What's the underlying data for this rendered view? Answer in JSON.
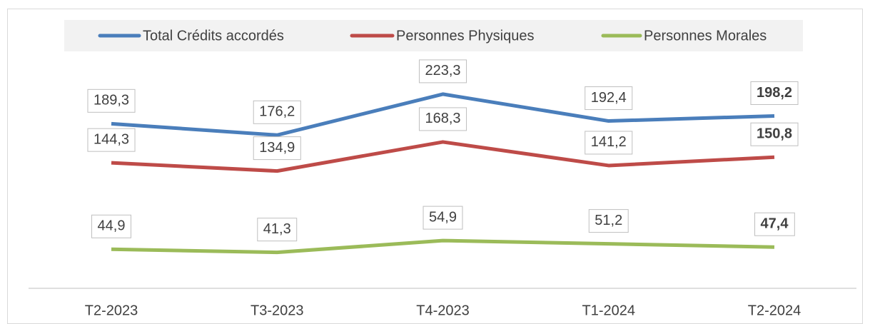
{
  "chart_data": {
    "type": "line",
    "categories": [
      "T2-2023",
      "T3-2023",
      "T4-2023",
      "T1-2024",
      "T2-2024"
    ],
    "series": [
      {
        "name": "Total Crédits accordés",
        "color": "#4a7ebb",
        "values": [
          189.3,
          176.2,
          223.3,
          192.4,
          198.2
        ],
        "value_labels": [
          "189,3",
          "176,2",
          "223,3",
          "192,4",
          "198,2"
        ]
      },
      {
        "name": "Personnes Physiques",
        "color": "#be4b48",
        "values": [
          144.3,
          134.9,
          168.3,
          141.2,
          150.8
        ],
        "value_labels": [
          "144,3",
          "134,9",
          "168,3",
          "141,2",
          "150,8"
        ]
      },
      {
        "name": "Personnes Morales",
        "color": "#9bbb59",
        "values": [
          44.9,
          41.3,
          54.9,
          51.2,
          47.4
        ],
        "value_labels": [
          "44,9",
          "41,3",
          "54,9",
          "51,2",
          "47,4"
        ]
      }
    ],
    "ylim": [
      0,
      270
    ],
    "legend": "top"
  }
}
